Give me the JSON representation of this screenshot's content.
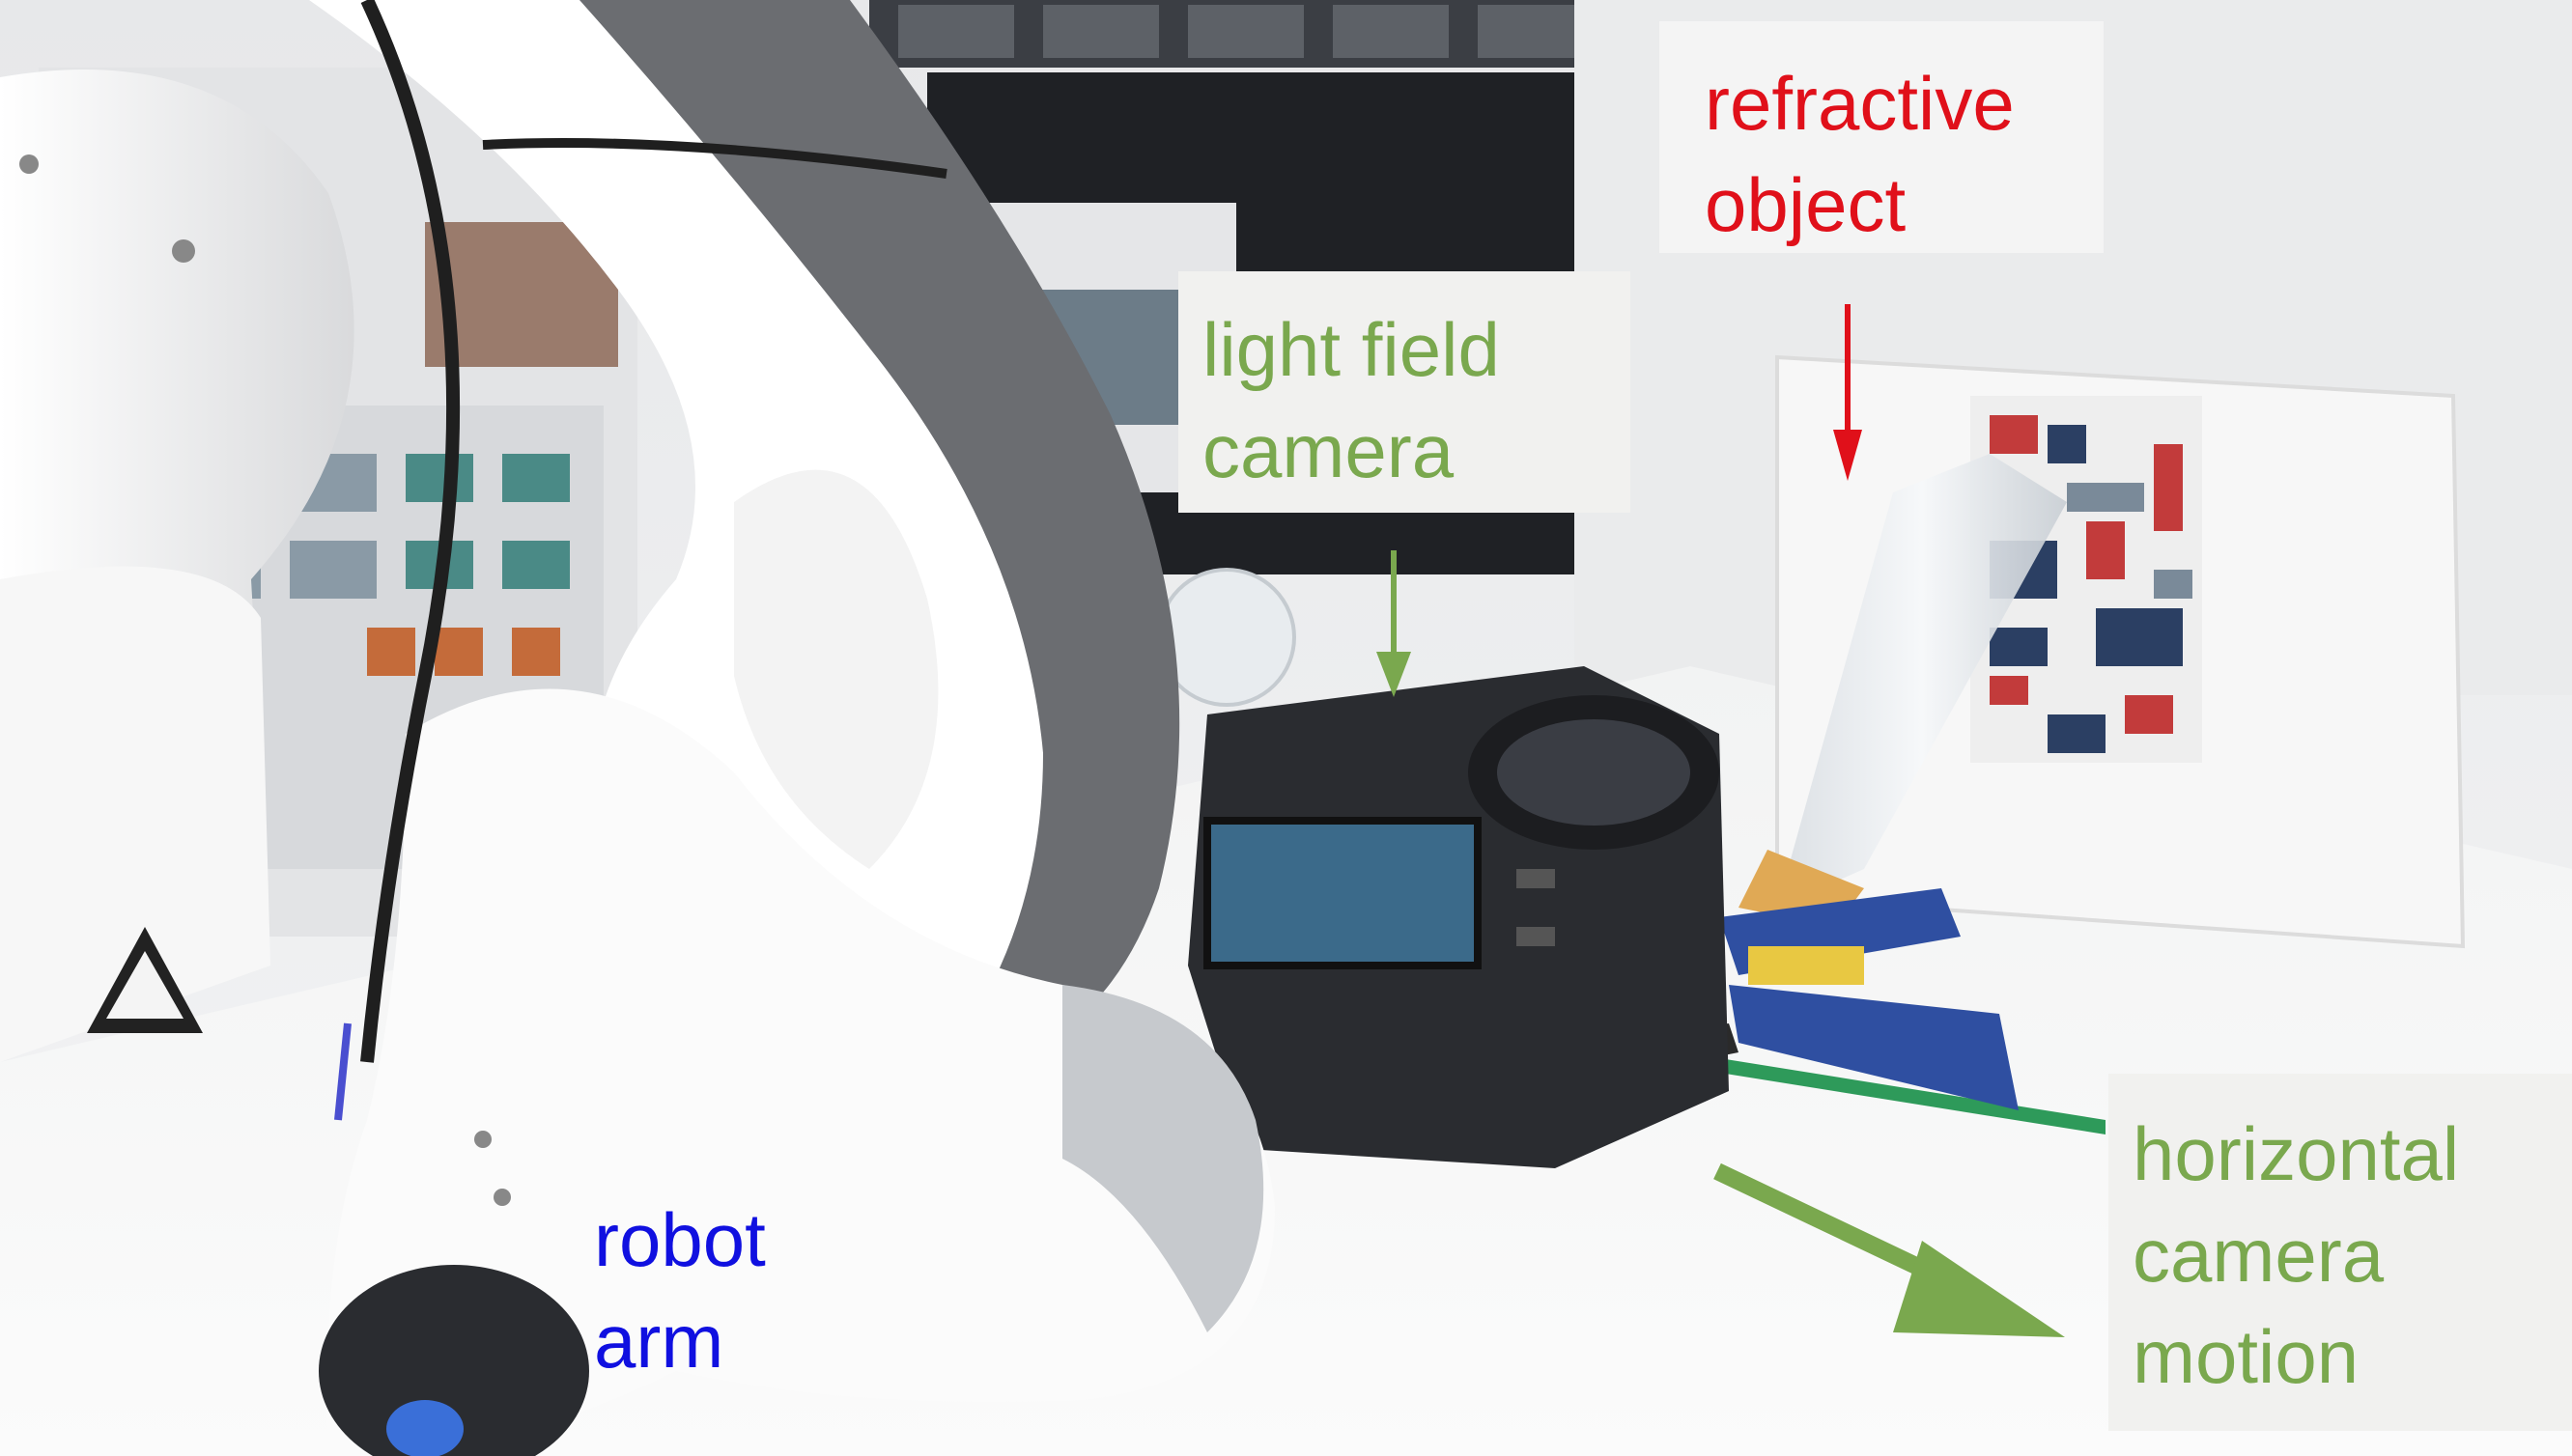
{
  "annotations": {
    "refractive_object": {
      "lines": [
        "refractive",
        "object"
      ],
      "color": "#e0101a"
    },
    "light_field_camera": {
      "lines": [
        "light field",
        "camera"
      ],
      "color": "#7aa84e"
    },
    "robot_arm": {
      "lines": [
        "robot",
        "arm"
      ],
      "color": "#1010e0"
    },
    "horizontal_camera_motion": {
      "lines": [
        "horizontal",
        "camera",
        "motion"
      ],
      "color": "#7aa84e"
    }
  },
  "arrows": {
    "red": "#e0101a",
    "green": "#7aa84e"
  }
}
